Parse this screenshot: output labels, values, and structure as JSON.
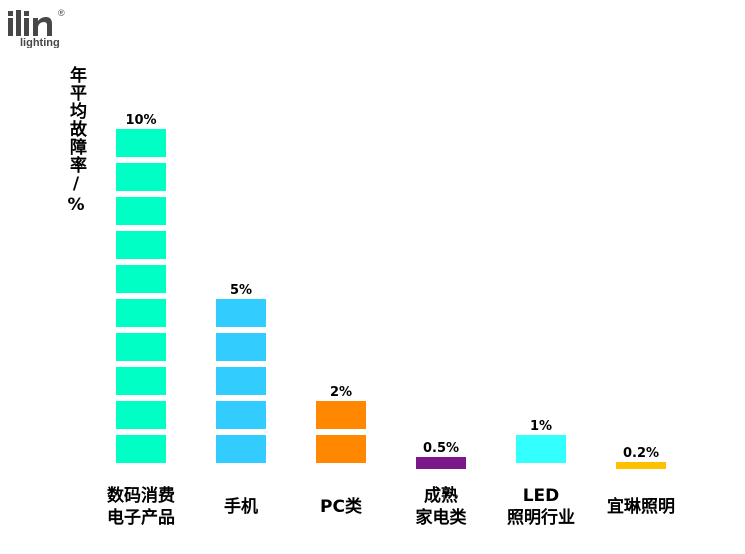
{
  "brand": {
    "logo_text_main": "ilin",
    "logo_text_sub": "lighting",
    "logo_mark": "®"
  },
  "chart_data": {
    "type": "bar",
    "title": "",
    "xlabel": "",
    "ylabel": "年平均故障率/%",
    "categories": [
      "数码消费\n电子产品",
      "手机",
      "PC类",
      "成熟\n家电类",
      "LED\n照明行业",
      "宜琳照明"
    ],
    "values": [
      10,
      5,
      2,
      0.5,
      1,
      0.2
    ],
    "value_labels": [
      "10%",
      "5%",
      "2%",
      "0.5%",
      "1%",
      "0.2%"
    ],
    "colors": [
      "#00ffc4",
      "#33ccff",
      "#ff8800",
      "#7b1788",
      "#33ffff",
      "#ffc000"
    ],
    "ylim": [
      0,
      10
    ],
    "grid": false,
    "legend": "none"
  }
}
